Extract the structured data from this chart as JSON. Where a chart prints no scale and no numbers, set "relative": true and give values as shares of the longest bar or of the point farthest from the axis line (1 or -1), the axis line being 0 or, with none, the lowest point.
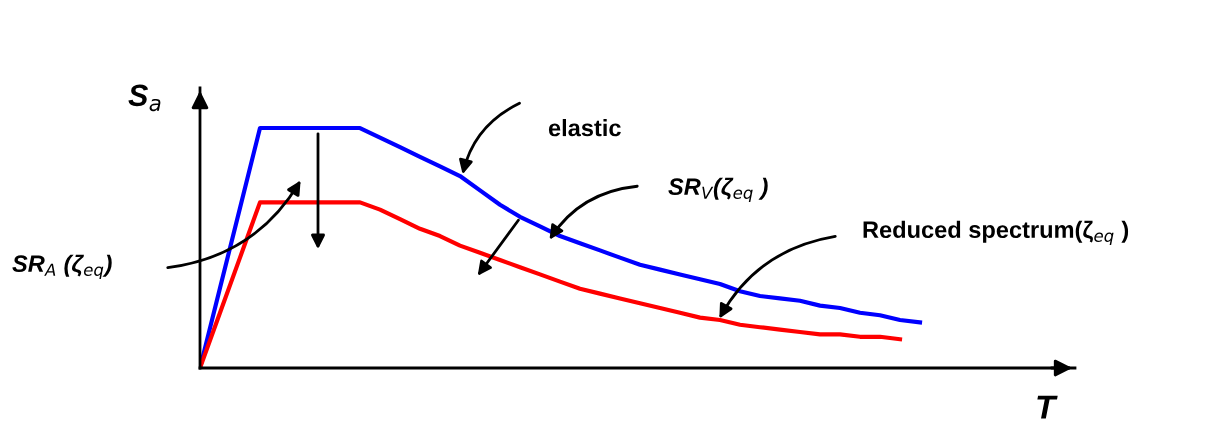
{
  "chart_data": {
    "type": "line",
    "relative": true,
    "xlabel": "T",
    "ylabel": "S$_{a}$",
    "categories": [
      null,
      null,
      null,
      null,
      null,
      null,
      null,
      null,
      null,
      null,
      null,
      null,
      null,
      null,
      null,
      null,
      null,
      null,
      null,
      null,
      null,
      null,
      null,
      null,
      null,
      null,
      null,
      null,
      null,
      null,
      null,
      null,
      null,
      null,
      null,
      null,
      null
    ],
    "series": [
      {
        "color": "#0000ff",
        "values": [
          0,
          0.333,
          0.667,
          1,
          1,
          1,
          1,
          1,
          1,
          0.96,
          0.92,
          0.88,
          0.84,
          0.8,
          0.74,
          0.68,
          0.63,
          0.59,
          0.55,
          0.52,
          0.49,
          0.46,
          0.43,
          0.41,
          0.39,
          0.37,
          0.35,
          0.32,
          0.3,
          0.29,
          0.28,
          0.26,
          0.25,
          0.23,
          0.22,
          0.2,
          0.19
        ]
      },
      {
        "color": "#ff0000",
        "values": [
          0,
          0.23,
          0.46,
          0.69,
          0.69,
          0.69,
          0.69,
          0.69,
          0.69,
          0.66,
          0.62,
          0.58,
          0.55,
          0.51,
          0.48,
          0.45,
          0.42,
          0.39,
          0.36,
          0.33,
          0.31,
          0.29,
          0.27,
          0.25,
          0.23,
          0.21,
          0.2,
          0.18,
          0.17,
          0.16,
          0.15,
          0.14,
          0.14,
          0.13,
          0.13,
          0.12,
          null
        ]
      }
    ],
    "annotations": [
      "elastic",
      "SR$_{V}$(ζ$_{eq}$ )",
      "Reduced spectrum(ζ$_{eq}$ )",
      "SR$_{A}$ (ζ$_{eq}$)"
    ],
    "tick_labels": false,
    "line_style": "solid",
    "marker": "none"
  }
}
